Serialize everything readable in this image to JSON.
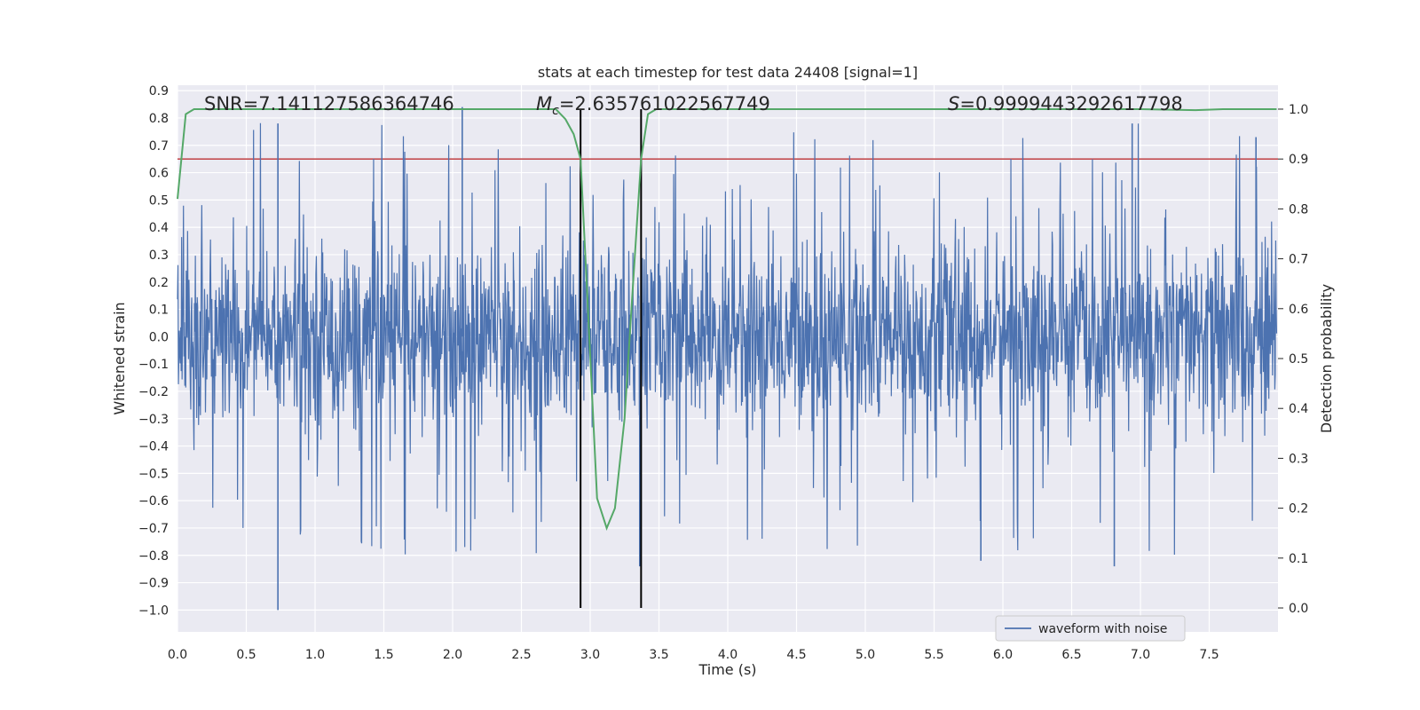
{
  "chart_data": {
    "type": "line",
    "title": "stats at each timestep for test data 24408 [signal=1]",
    "xlabel": "Time (s)",
    "ylabel": "Whitened strain",
    "y2label": "Detection probability",
    "xlim": [
      0.0,
      8.0
    ],
    "ylim": [
      -1.08,
      0.92
    ],
    "y2lim": [
      -0.048,
      1.048
    ],
    "x_ticks": [
      "0.0",
      "0.5",
      "1.0",
      "1.5",
      "2.0",
      "2.5",
      "3.0",
      "3.5",
      "4.0",
      "4.5",
      "5.0",
      "5.5",
      "6.0",
      "6.5",
      "7.0",
      "7.5"
    ],
    "y_ticks": [
      "0.9",
      "0.8",
      "0.7",
      "0.6",
      "0.5",
      "0.4",
      "0.3",
      "0.2",
      "0.1",
      "0.0",
      "-0.1",
      "-0.2",
      "-0.3",
      "-0.4",
      "-0.5",
      "-0.6",
      "-0.7",
      "-0.8",
      "-0.9",
      "-1.0"
    ],
    "y2_ticks": [
      "1.0",
      "0.9",
      "0.8",
      "0.7",
      "0.6",
      "0.5",
      "0.4",
      "0.3",
      "0.2",
      "0.1",
      "0.0"
    ],
    "annotations": {
      "snr": "SNR=7.141127586364746",
      "mc_symbol": "M",
      "mc_sub": "c",
      "mc_value": "=2.635761022567749",
      "s_symbol": "S",
      "s_value": "=0.9999443292617798"
    },
    "threshold": 0.9,
    "vlines": [
      2.93,
      3.37
    ],
    "series": [
      {
        "name": "waveform with noise",
        "axis": "left",
        "description": "noisy whitened strain, amplitude mostly within ±0.3 with spikes to about 0.85 and -1.0",
        "max": 0.85,
        "min": -1.0
      },
      {
        "name": "detection probability",
        "axis": "right",
        "x": [
          0.0,
          0.06,
          0.12,
          0.5,
          1.0,
          1.5,
          2.0,
          2.5,
          2.75,
          2.82,
          2.88,
          2.93,
          2.98,
          3.05,
          3.12,
          3.18,
          3.25,
          3.3,
          3.37,
          3.42,
          3.48,
          3.6,
          4.0,
          5.0,
          6.0,
          7.0,
          7.4,
          7.6,
          7.99
        ],
        "values": [
          0.82,
          0.99,
          1.0,
          1.0,
          1.0,
          1.0,
          1.0,
          1.0,
          1.0,
          0.98,
          0.95,
          0.9,
          0.62,
          0.22,
          0.16,
          0.2,
          0.38,
          0.6,
          0.9,
          0.99,
          1.0,
          1.0,
          1.0,
          1.0,
          1.0,
          1.0,
          0.998,
          1.0,
          1.0
        ]
      }
    ],
    "legend": {
      "entries": [
        "waveform with noise"
      ],
      "location": "lower-right"
    }
  },
  "colors": {
    "strain": "#4c72b0",
    "probability": "#55a868",
    "threshold": "#c44e52",
    "vline": "#000000",
    "plot_bg": "#eaeaf2",
    "grid": "#ffffff"
  }
}
